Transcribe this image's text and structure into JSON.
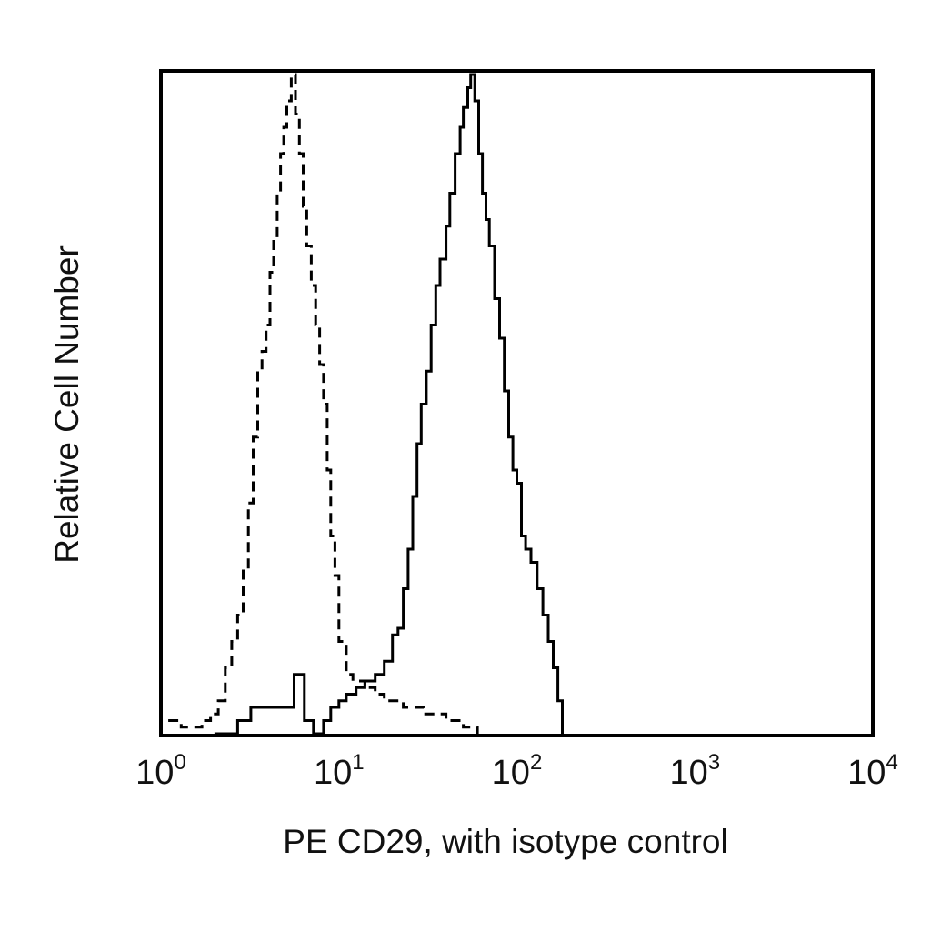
{
  "chart_data": {
    "type": "line",
    "xlabel": "PE CD29, with isotype control",
    "ylabel": "Relative Cell Number",
    "x_scale": "log",
    "xlim": [
      1,
      10000
    ],
    "ylim": [
      0,
      100
    ],
    "grid": false,
    "x_ticks": [
      {
        "value": 1,
        "base": "10",
        "exp": "0"
      },
      {
        "value": 10,
        "base": "10",
        "exp": "1"
      },
      {
        "value": 100,
        "base": "10",
        "exp": "2"
      },
      {
        "value": 1000,
        "base": "10",
        "exp": "3"
      },
      {
        "value": 10000,
        "base": "10",
        "exp": "4"
      }
    ],
    "series": [
      {
        "style": "solid",
        "color": "#000000",
        "x": [
          2.0,
          2.3,
          2.7,
          3.2,
          4.0,
          5.0,
          5.6,
          6.4,
          7.2,
          8.2,
          9.0,
          10.0,
          11.0,
          12.5,
          14.0,
          16.0,
          18.0,
          20.0,
          21.5,
          23.0,
          24.5,
          26.0,
          27.5,
          29.0,
          31.0,
          33.0,
          35.0,
          37.0,
          40.0,
          42.0,
          45.0,
          48.0,
          50.0,
          53.0,
          55.0,
          58.0,
          61.0,
          64.0,
          67.0,
          70.0,
          75.0,
          80.0,
          85.0,
          90.0,
          95.0,
          100.0,
          106.0,
          112.0,
          120.0,
          130.0,
          140.0,
          150.0,
          160.0,
          170.0,
          180.0
        ],
        "y": [
          0,
          0,
          2,
          4,
          4,
          4,
          9,
          2,
          0,
          2,
          4,
          5,
          6,
          7,
          8,
          9,
          11,
          15,
          16,
          22,
          28,
          36,
          44,
          50,
          55,
          62,
          68,
          72,
          77,
          82,
          88,
          92,
          95,
          98,
          100,
          96,
          88,
          82,
          78,
          74,
          66,
          60,
          52,
          45,
          40,
          38,
          30,
          28,
          26,
          22,
          18,
          14,
          10,
          5,
          0
        ]
      },
      {
        "style": "dashed",
        "color": "#000000",
        "x": [
          1.1,
          1.3,
          1.5,
          1.7,
          1.9,
          2.1,
          2.3,
          2.5,
          2.7,
          2.9,
          3.1,
          3.3,
          3.5,
          3.7,
          3.9,
          4.1,
          4.3,
          4.5,
          4.7,
          4.9,
          5.1,
          5.4,
          5.7,
          6.0,
          6.3,
          6.6,
          7.0,
          7.4,
          7.8,
          8.2,
          8.6,
          9.0,
          9.5,
          10.0,
          11.0,
          12.0,
          14.0,
          16.0,
          18.0,
          20.0,
          23.0,
          26.0,
          30.0,
          35.0,
          40.0,
          45.0,
          50.0,
          55.0,
          60.0
        ],
        "y": [
          2,
          1,
          1,
          2,
          3,
          5,
          10,
          14,
          18,
          25,
          35,
          45,
          55,
          58,
          62,
          70,
          75,
          82,
          88,
          92,
          96,
          100,
          94,
          88,
          80,
          74,
          68,
          62,
          56,
          50,
          40,
          30,
          24,
          14,
          9,
          8,
          7,
          6,
          5,
          5,
          4,
          4,
          3,
          3,
          2,
          2,
          1,
          1,
          0
        ]
      }
    ]
  }
}
